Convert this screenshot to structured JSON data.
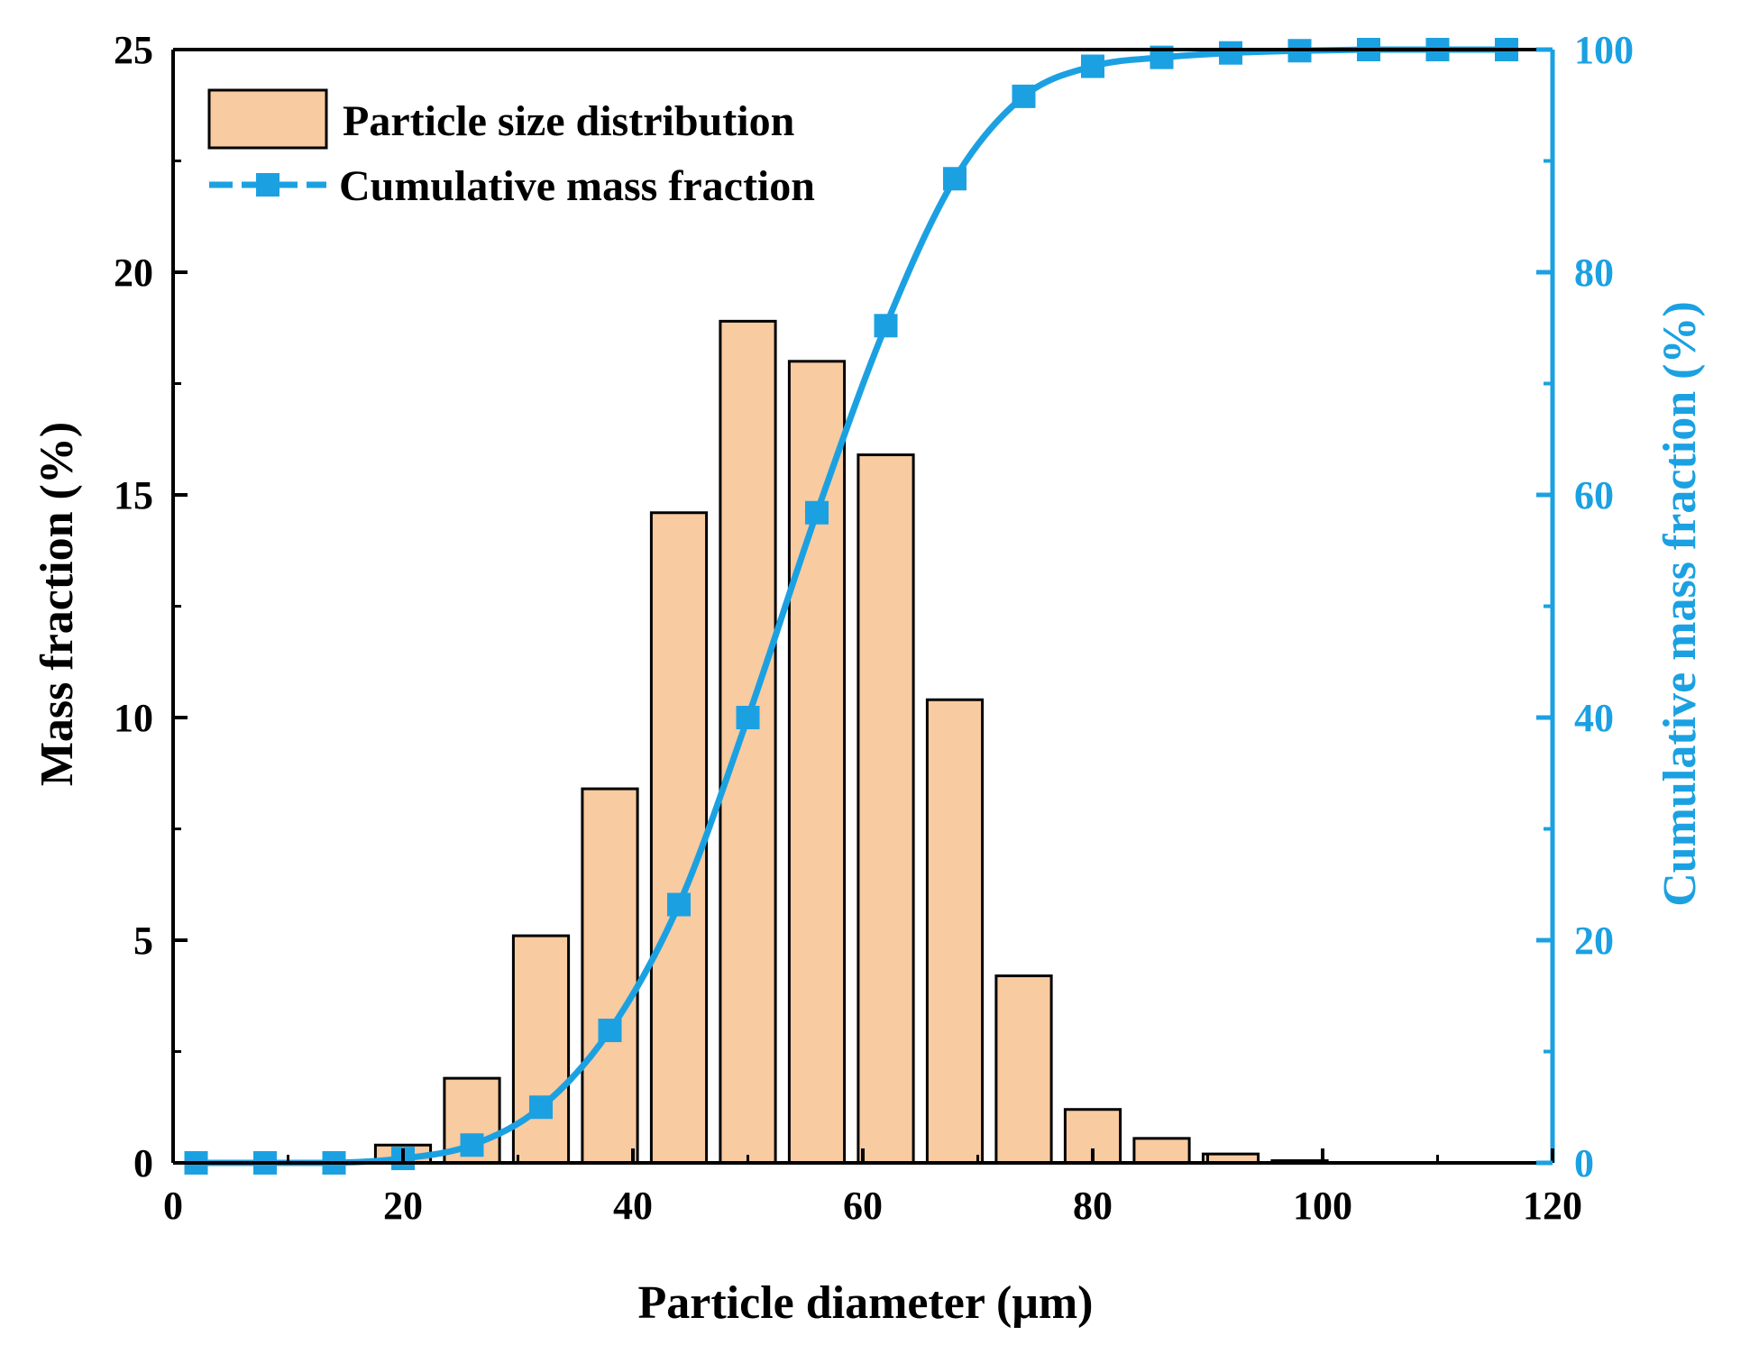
{
  "chart_data": {
    "type": "bar+line",
    "xlabel": "Particle diameter (μm)",
    "ylabel_left": "Mass fraction (%)",
    "ylabel_right": "Cumulative mass fraction (%)",
    "xlim": [
      0,
      120
    ],
    "ylim_left": [
      0,
      25
    ],
    "ylim_right": [
      0,
      100
    ],
    "x_ticks": [
      "0",
      "20",
      "40",
      "60",
      "80",
      "100",
      "120"
    ],
    "y_left_ticks": [
      "0",
      "5",
      "10",
      "15",
      "20",
      "25"
    ],
    "y_right_ticks": [
      "0",
      "20",
      "40",
      "60",
      "80",
      "100"
    ],
    "legend": {
      "bar_label": "Particle size distribution",
      "line_label": "Cumulative mass fraction",
      "placement": "top-left"
    },
    "colors": {
      "bar_fill": "#F8CBA0",
      "bar_stroke": "#000000",
      "line": "#1BA1E2",
      "right_axis": "#1BA1E2"
    },
    "series": [
      {
        "name": "Particle size distribution",
        "kind": "bar",
        "bar_width": 4.8,
        "x": [
          20,
          26,
          32,
          38,
          44,
          50,
          56,
          62,
          68,
          74,
          80,
          86,
          92,
          98
        ],
        "values": [
          0.4,
          1.9,
          5.1,
          8.4,
          14.6,
          18.9,
          18.0,
          15.9,
          10.4,
          4.2,
          1.2,
          0.55,
          0.2,
          0.05
        ]
      },
      {
        "name": "Cumulative mass fraction",
        "kind": "line",
        "x": [
          2,
          8,
          14,
          20,
          26,
          32,
          38,
          44,
          50,
          56,
          62,
          68,
          74,
          80,
          86,
          92,
          98,
          104,
          110,
          116
        ],
        "values": [
          0,
          0,
          0,
          0.4,
          1.6,
          5.0,
          11.9,
          23.2,
          40.0,
          58.4,
          75.2,
          88.4,
          95.8,
          98.5,
          99.3,
          99.7,
          99.9,
          100,
          100,
          100
        ]
      }
    ]
  }
}
